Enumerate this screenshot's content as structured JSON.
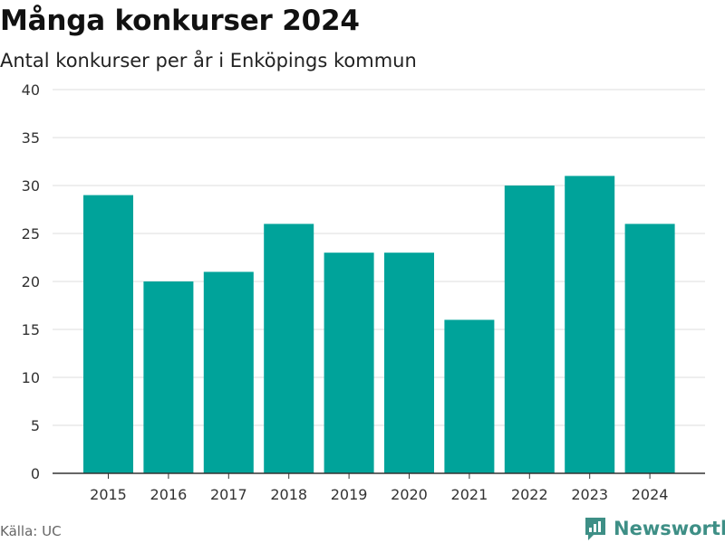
{
  "header": {
    "title": "Många konkurser 2024",
    "subtitle": "Antal konkurser per år i Enköpings kommun"
  },
  "footer": {
    "source": "Källa: UC",
    "brand": "Newsworthy",
    "brand_icon": "bar-chart-logo-icon"
  },
  "colors": {
    "bar": "#00a39a",
    "grid": "#dddddd",
    "axis": "#333333",
    "brand": "#3e8f86"
  },
  "chart_data": {
    "type": "bar",
    "title": "Många konkurser 2024",
    "subtitle": "Antal konkurser per år i Enköpings kommun",
    "xlabel": "",
    "ylabel": "",
    "categories": [
      "2015",
      "2016",
      "2017",
      "2018",
      "2019",
      "2020",
      "2021",
      "2022",
      "2023",
      "2024"
    ],
    "values": [
      29,
      20,
      21,
      26,
      23,
      23,
      16,
      30,
      31,
      26
    ],
    "ylim": [
      0,
      40
    ],
    "yticks": [
      0,
      5,
      10,
      15,
      20,
      25,
      30,
      35,
      40
    ],
    "grid": true
  }
}
